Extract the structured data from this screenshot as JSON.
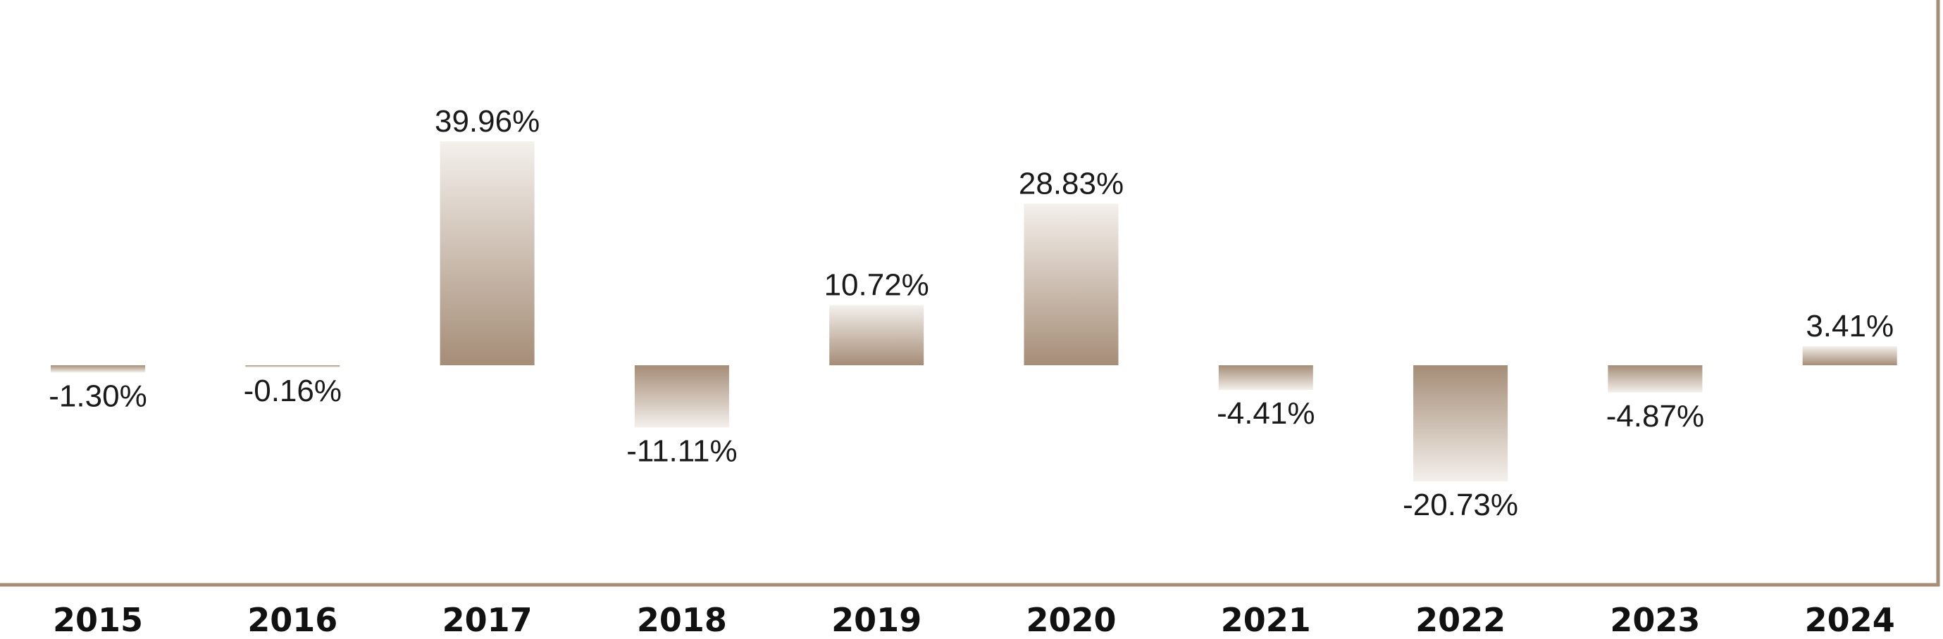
{
  "chart_data": {
    "type": "bar",
    "categories": [
      "2015",
      "2016",
      "2017",
      "2018",
      "2019",
      "2020",
      "2021",
      "2022",
      "2023",
      "2024"
    ],
    "values": [
      -1.3,
      -0.16,
      39.96,
      -11.11,
      10.72,
      28.83,
      -4.41,
      -20.73,
      -4.87,
      3.41
    ],
    "value_labels": [
      "-1.30%",
      "-0.16%",
      "39.96%",
      "-11.11%",
      "10.72%",
      "28.83%",
      "-4.41%",
      "-20.73%",
      "-4.87%",
      "3.41%"
    ],
    "title": "",
    "xlabel": "",
    "ylabel": "",
    "grid": false,
    "legend": "none",
    "colors": {
      "bar_dark": "#a58d77",
      "bar_light": "#f4f0ec",
      "axis": "#a58d77"
    }
  }
}
